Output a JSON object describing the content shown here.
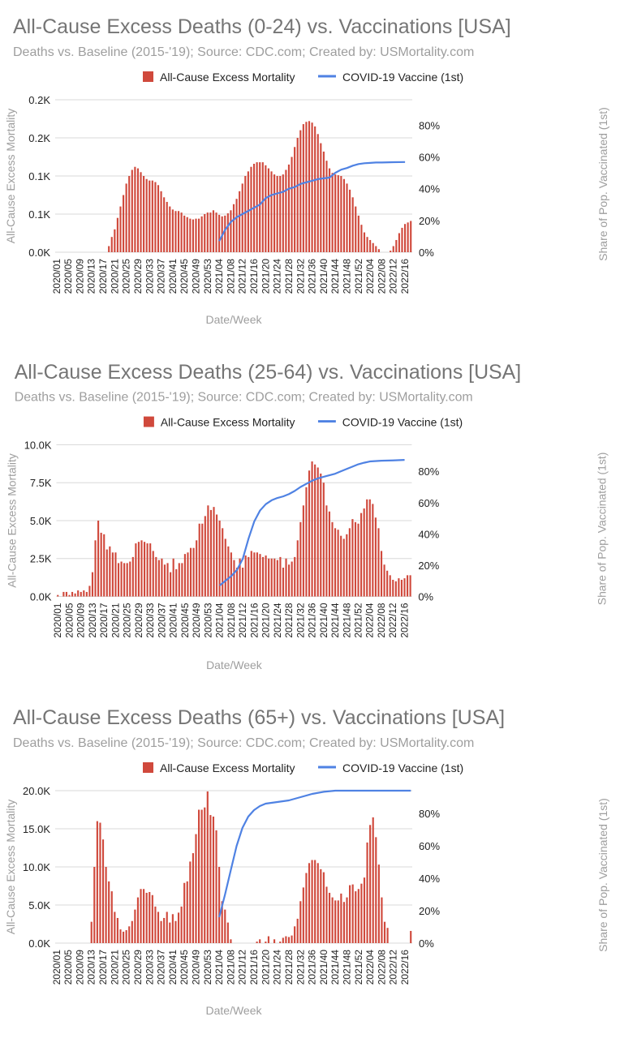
{
  "colors": {
    "bars": "#d0493c",
    "line": "#4f82e3",
    "grid": "#d8d8d8"
  },
  "chart_data": [
    {
      "type": "bar+line",
      "title": "All-Cause Excess Deaths (0-24) vs. Vaccinations [USA]",
      "subtitle": "Deaths vs. Baseline (2015-'19); Source: CDC.com; Created by: USMortality.com",
      "legend": {
        "placement": "top",
        "bars": "All-Cause Excess Mortality",
        "line": "COVID-19 Vaccine (1st)"
      },
      "xlabel": "Date/Week",
      "ylabel": "All-Cause Excess Mortality",
      "y2label": "Share of Pop. Vaccinated (1st)",
      "ylim": [
        0,
        200
      ],
      "y_ticks": [
        0,
        50,
        100,
        150,
        200
      ],
      "y_tick_labels": [
        "0.0K",
        "0.1K",
        "0.1K",
        "0.2K",
        "0.2K"
      ],
      "y2lim": [
        0,
        96
      ],
      "y2_ticks": [
        0,
        20,
        40,
        60,
        80
      ],
      "y2_tick_labels": [
        "0%",
        "20%",
        "40%",
        "60%",
        "80%"
      ],
      "grid": true,
      "x_tick_labels": [
        "2020/01",
        "2020/05",
        "2020/09",
        "2020/13",
        "2020/17",
        "2020/21",
        "2020/25",
        "2020/29",
        "2020/33",
        "2020/37",
        "2020/41",
        "2020/45",
        "2020/49",
        "2020/53",
        "2021/04",
        "2021/08",
        "2021/12",
        "2021/16",
        "2021/20",
        "2021/24",
        "2021/28",
        "2021/32",
        "2021/36",
        "2021/40",
        "2021/44",
        "2021/48",
        "2021/52",
        "2022/04",
        "2022/08",
        "2022/12",
        "2022/16"
      ],
      "values": [
        0,
        0,
        0,
        0,
        0,
        0,
        0,
        0,
        0,
        0,
        0,
        0,
        0,
        0,
        0,
        0,
        0,
        0,
        8,
        20,
        30,
        45,
        60,
        75,
        90,
        100,
        108,
        112,
        110,
        105,
        100,
        96,
        94,
        94,
        92,
        88,
        80,
        72,
        66,
        60,
        56,
        54,
        54,
        52,
        48,
        46,
        44,
        43,
        44,
        44,
        47,
        50,
        52,
        52,
        55,
        52,
        49,
        47,
        48,
        51,
        55,
        63,
        70,
        80,
        90,
        100,
        106,
        112,
        116,
        118,
        118,
        118,
        114,
        110,
        106,
        102,
        100,
        100,
        102,
        108,
        115,
        125,
        138,
        150,
        160,
        168,
        171,
        172,
        170,
        165,
        155,
        143,
        132,
        120,
        110,
        104,
        102,
        101,
        100,
        96,
        90,
        82,
        72,
        60,
        48,
        36,
        26,
        20,
        16,
        12,
        8,
        4,
        0,
        0,
        0,
        2,
        8,
        16,
        25,
        32,
        37,
        39,
        41
      ],
      "line_points": [
        [
          "2021/04",
          7
        ],
        [
          "2021/06",
          14
        ],
        [
          "2021/08",
          19
        ],
        [
          "2021/10",
          22
        ],
        [
          "2021/12",
          24
        ],
        [
          "2021/14",
          26
        ],
        [
          "2021/16",
          28
        ],
        [
          "2021/18",
          30
        ],
        [
          "2021/20",
          34
        ],
        [
          "2021/22",
          36
        ],
        [
          "2021/24",
          37
        ],
        [
          "2021/26",
          38
        ],
        [
          "2021/28",
          40
        ],
        [
          "2021/30",
          41
        ],
        [
          "2021/32",
          43
        ],
        [
          "2021/34",
          44
        ],
        [
          "2021/36",
          45
        ],
        [
          "2021/38",
          46
        ],
        [
          "2021/40",
          46.5
        ],
        [
          "2021/42",
          47
        ],
        [
          "2021/44",
          50
        ],
        [
          "2021/46",
          52
        ],
        [
          "2021/48",
          53
        ],
        [
          "2021/50",
          54.5
        ],
        [
          "2021/52",
          55.5
        ],
        [
          "2022/02",
          56
        ],
        [
          "2022/04",
          56.2
        ],
        [
          "2022/06",
          56.5
        ],
        [
          "2022/08",
          56.5
        ],
        [
          "2022/12",
          56.7
        ],
        [
          "2022/16",
          56.8
        ]
      ]
    },
    {
      "type": "bar+line",
      "title": "All-Cause Excess Deaths (25-64) vs. Vaccinations [USA]",
      "subtitle": "Deaths vs. Baseline (2015-'19); Source: CDC.com; Created by: USMortality.com",
      "legend": {
        "placement": "top",
        "bars": "All-Cause Excess Mortality",
        "line": "COVID-19 Vaccine (1st)"
      },
      "xlabel": "Date/Week",
      "ylabel": "All-Cause Excess Mortality",
      "y2label": "Share of Pop. Vaccinated (1st)",
      "ylim": [
        0,
        10000
      ],
      "y_ticks": [
        0,
        2500,
        5000,
        7500,
        10000
      ],
      "y_tick_labels": [
        "0.0K",
        "2.5K",
        "5.0K",
        "7.5K",
        "10.0K"
      ],
      "y2lim": [
        0,
        97
      ],
      "y2_ticks": [
        0,
        20,
        40,
        60,
        80
      ],
      "y2_tick_labels": [
        "0%",
        "20%",
        "40%",
        "60%",
        "80%"
      ],
      "grid": true,
      "x_tick_labels": [
        "2020/01",
        "2020/05",
        "2020/09",
        "2020/13",
        "2020/17",
        "2020/21",
        "2020/25",
        "2020/29",
        "2020/33",
        "2020/37",
        "2020/41",
        "2020/45",
        "2020/49",
        "2020/53",
        "2021/04",
        "2021/08",
        "2021/12",
        "2021/16",
        "2021/20",
        "2021/24",
        "2021/28",
        "2021/32",
        "2021/36",
        "2021/40",
        "2021/44",
        "2021/48",
        "2021/52",
        "2022/04",
        "2022/08",
        "2022/12",
        "2022/16"
      ],
      "values": [
        100,
        0,
        300,
        300,
        100,
        300,
        200,
        400,
        300,
        400,
        300,
        700,
        1600,
        3700,
        5000,
        4200,
        4100,
        3100,
        3300,
        2900,
        2900,
        2200,
        2300,
        2200,
        2200,
        2300,
        2600,
        3500,
        3600,
        3700,
        3600,
        3500,
        3500,
        3000,
        2600,
        2400,
        2500,
        2100,
        2200,
        1600,
        2500,
        1800,
        2200,
        2200,
        2800,
        2900,
        3200,
        3200,
        3700,
        4800,
        4800,
        5300,
        6000,
        5700,
        5900,
        5400,
        5000,
        4500,
        3800,
        3300,
        2900,
        2400,
        1900,
        2500,
        1900,
        2700,
        2600,
        3000,
        2900,
        2900,
        2800,
        2600,
        2700,
        2500,
        2500,
        2500,
        2400,
        2600,
        1900,
        2500,
        2100,
        2300,
        2600,
        3700,
        4900,
        6000,
        7200,
        8300,
        8900,
        8700,
        8500,
        8100,
        7500,
        6000,
        5600,
        4900,
        4500,
        4400,
        4000,
        3800,
        4100,
        4500,
        5100,
        4900,
        4800,
        5500,
        5800,
        6400,
        6400,
        6100,
        5200,
        4500,
        3000,
        2100,
        1700,
        1400,
        1100,
        1000,
        1200,
        1100,
        1200,
        1400,
        1400
      ],
      "line_points": [
        [
          "2021/04",
          7
        ],
        [
          "2021/06",
          10
        ],
        [
          "2021/08",
          13
        ],
        [
          "2021/10",
          17
        ],
        [
          "2021/12",
          24
        ],
        [
          "2021/14",
          37
        ],
        [
          "2021/16",
          48
        ],
        [
          "2021/18",
          55
        ],
        [
          "2021/20",
          59
        ],
        [
          "2021/22",
          61.5
        ],
        [
          "2021/24",
          63
        ],
        [
          "2021/26",
          64
        ],
        [
          "2021/28",
          65.5
        ],
        [
          "2021/30",
          67.5
        ],
        [
          "2021/32",
          70
        ],
        [
          "2021/34",
          72
        ],
        [
          "2021/36",
          74
        ],
        [
          "2021/38",
          75.5
        ],
        [
          "2021/40",
          76.5
        ],
        [
          "2021/42",
          77.5
        ],
        [
          "2021/44",
          78.5
        ],
        [
          "2021/46",
          80
        ],
        [
          "2021/48",
          81.5
        ],
        [
          "2021/50",
          83
        ],
        [
          "2021/52",
          84.5
        ],
        [
          "2022/02",
          85.5
        ],
        [
          "2022/04",
          86.3
        ],
        [
          "2022/08",
          86.8
        ],
        [
          "2022/12",
          87
        ],
        [
          "2022/16",
          87.3
        ]
      ]
    },
    {
      "type": "bar+line",
      "title": "All-Cause Excess Deaths (65+) vs. Vaccinations [USA]",
      "subtitle": "Deaths vs. Baseline (2015-'19); Source: CDC.com; Created by: USMortality.com",
      "legend": {
        "placement": "top",
        "bars": "All-Cause Excess Mortality",
        "line": "COVID-19 Vaccine (1st)"
      },
      "xlabel": "Date/Week",
      "ylabel": "All-Cause Excess Mortality",
      "y2label": "Share of Pop. Vaccinated (1st)",
      "ylim": [
        0,
        20000
      ],
      "y_ticks": [
        0,
        5000,
        10000,
        15000,
        20000
      ],
      "y_tick_labels": [
        "0.0K",
        "5.0K",
        "10.0K",
        "15.0K",
        "20.0K"
      ],
      "y2lim": [
        0,
        94
      ],
      "y2_ticks": [
        0,
        20,
        40,
        60,
        80
      ],
      "y2_tick_labels": [
        "0%",
        "20%",
        "40%",
        "60%",
        "80%"
      ],
      "grid": true,
      "x_tick_labels": [
        "2020/01",
        "2020/05",
        "2020/09",
        "2020/13",
        "2020/17",
        "2020/21",
        "2020/25",
        "2020/29",
        "2020/33",
        "2020/37",
        "2020/41",
        "2020/45",
        "2020/49",
        "2020/53",
        "2021/04",
        "2021/08",
        "2021/12",
        "2021/16",
        "2021/20",
        "2021/24",
        "2021/28",
        "2021/32",
        "2021/36",
        "2021/40",
        "2021/44",
        "2021/48",
        "2021/52",
        "2022/04",
        "2022/08",
        "2022/12",
        "2022/16"
      ],
      "values": [
        0,
        0,
        0,
        0,
        0,
        0,
        0,
        0,
        0,
        0,
        0,
        0,
        2800,
        10000,
        16000,
        15800,
        13600,
        10000,
        8100,
        6800,
        4100,
        3300,
        1800,
        1500,
        1700,
        2200,
        2900,
        4400,
        6000,
        7100,
        7100,
        6600,
        6700,
        6300,
        4800,
        4100,
        2900,
        3300,
        4100,
        2700,
        3800,
        2900,
        4000,
        4800,
        7900,
        8100,
        10700,
        11800,
        14300,
        17500,
        17500,
        17800,
        19900,
        16800,
        16600,
        14800,
        10000,
        5500,
        4400,
        2700,
        500,
        0,
        0,
        0,
        0,
        0,
        0,
        0,
        0,
        200,
        500,
        0,
        200,
        900,
        0,
        500,
        0,
        200,
        700,
        900,
        800,
        1000,
        2200,
        3200,
        5500,
        7300,
        9200,
        10500,
        10900,
        10900,
        10500,
        9700,
        9300,
        7400,
        6600,
        6000,
        5600,
        5600,
        6500,
        5400,
        6000,
        7600,
        7700,
        6800,
        7100,
        7800,
        8600,
        13200,
        15500,
        16500,
        13900,
        10300,
        6000,
        2800,
        2000,
        0,
        0,
        0,
        0,
        0,
        0,
        0,
        1600
      ],
      "line_points": [
        [
          "2021/04",
          16
        ],
        [
          "2021/06",
          30
        ],
        [
          "2021/08",
          45
        ],
        [
          "2021/10",
          60
        ],
        [
          "2021/12",
          71
        ],
        [
          "2021/14",
          78
        ],
        [
          "2021/16",
          82
        ],
        [
          "2021/18",
          84.5
        ],
        [
          "2021/20",
          86
        ],
        [
          "2021/24",
          87
        ],
        [
          "2021/28",
          88
        ],
        [
          "2021/32",
          90
        ],
        [
          "2021/36",
          92
        ],
        [
          "2021/40",
          93.3
        ],
        [
          "2021/44",
          94
        ],
        [
          "2021/52",
          94
        ],
        [
          "2022/08",
          94
        ],
        [
          "2022/18",
          94
        ]
      ]
    }
  ]
}
